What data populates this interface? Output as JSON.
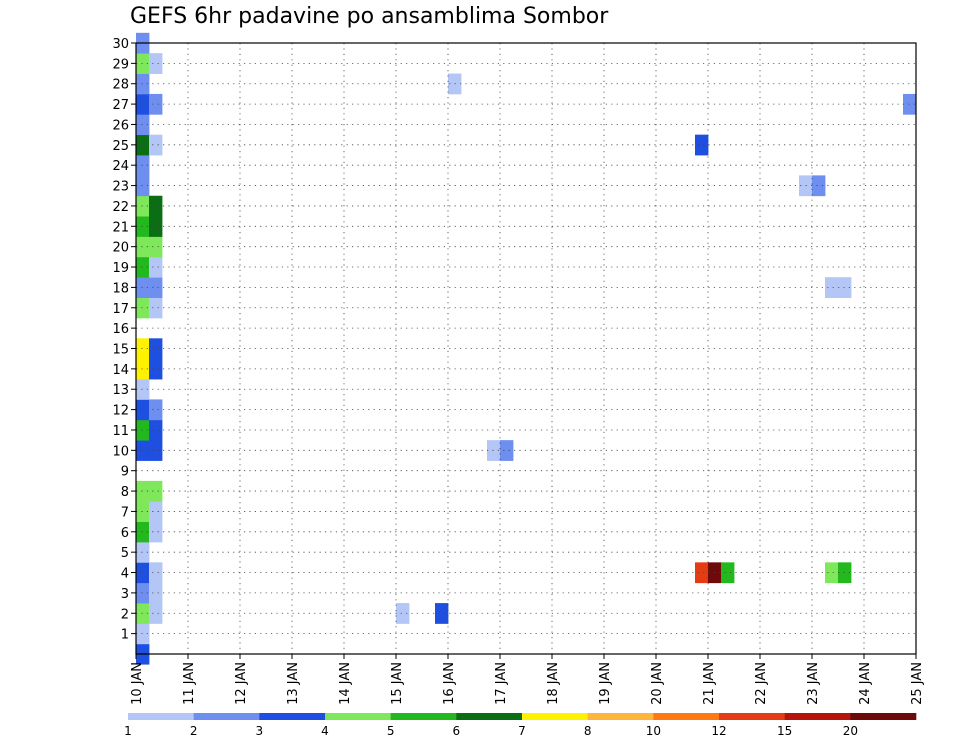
{
  "chart_data": {
    "type": "heatmap",
    "title": "GEFS 6hr padavine po ansamblima Sombor",
    "xlabel": "",
    "ylabel": "",
    "x_ticks": [
      "10 JAN",
      "11 JAN",
      "12 JAN",
      "13 JAN",
      "14 JAN",
      "15 JAN",
      "16 JAN",
      "17 JAN",
      "18 JAN",
      "19 JAN",
      "20 JAN",
      "21 JAN",
      "22 JAN",
      "23 JAN",
      "24 JAN",
      "25 JAN"
    ],
    "x_range_days": [
      10,
      25
    ],
    "y_ticks": [
      "1",
      "2",
      "3",
      "4",
      "5",
      "6",
      "7",
      "8",
      "9",
      "10",
      "11",
      "12",
      "13",
      "14",
      "15",
      "16",
      "17",
      "18",
      "19",
      "20",
      "21",
      "22",
      "23",
      "24",
      "25",
      "26",
      "27",
      "28",
      "29",
      "30"
    ],
    "y_range": [
      0,
      30
    ],
    "grid": true,
    "legend_position": "bottom",
    "colorbar": {
      "labels": [
        "1",
        "2",
        "3",
        "4",
        "5",
        "6",
        "7",
        "8",
        "10",
        "12",
        "15",
        "20"
      ],
      "colors": [
        "#b4c6f5",
        "#6e8ff0",
        "#1e4fe0",
        "#7ee85a",
        "#22b81e",
        "#0b6e14",
        "#fff200",
        "#ffb43c",
        "#ff7814",
        "#e63c14",
        "#b4140a",
        "#6e0a0a"
      ]
    },
    "cells": [
      {
        "x": 10.0,
        "y": 0,
        "c": 2
      },
      {
        "x": 10.0,
        "y": 1,
        "c": 0
      },
      {
        "x": 10.0,
        "y": 2,
        "c": 3
      },
      {
        "x": 10.25,
        "y": 2,
        "c": 0
      },
      {
        "x": 10.0,
        "y": 3,
        "c": 1
      },
      {
        "x": 10.25,
        "y": 3,
        "c": 0
      },
      {
        "x": 10.0,
        "y": 4,
        "c": 2
      },
      {
        "x": 10.25,
        "y": 4,
        "c": 0
      },
      {
        "x": 10.0,
        "y": 5,
        "c": 0
      },
      {
        "x": 10.0,
        "y": 6,
        "c": 4
      },
      {
        "x": 10.25,
        "y": 6,
        "c": 0
      },
      {
        "x": 10.0,
        "y": 7,
        "c": 3
      },
      {
        "x": 10.25,
        "y": 7,
        "c": 0
      },
      {
        "x": 10.0,
        "y": 8,
        "c": 3
      },
      {
        "x": 10.25,
        "y": 8,
        "c": 3
      },
      {
        "x": 10.0,
        "y": 10,
        "c": 2
      },
      {
        "x": 10.25,
        "y": 10,
        "c": 2
      },
      {
        "x": 10.0,
        "y": 11,
        "c": 4
      },
      {
        "x": 10.25,
        "y": 11,
        "c": 2
      },
      {
        "x": 10.0,
        "y": 12,
        "c": 2
      },
      {
        "x": 10.25,
        "y": 12,
        "c": 1
      },
      {
        "x": 10.0,
        "y": 13,
        "c": 0
      },
      {
        "x": 10.0,
        "y": 14,
        "c": 6
      },
      {
        "x": 10.25,
        "y": 14,
        "c": 2
      },
      {
        "x": 10.0,
        "y": 15,
        "c": 6
      },
      {
        "x": 10.25,
        "y": 15,
        "c": 2
      },
      {
        "x": 10.0,
        "y": 17,
        "c": 3
      },
      {
        "x": 10.25,
        "y": 17,
        "c": 0
      },
      {
        "x": 10.0,
        "y": 18,
        "c": 1
      },
      {
        "x": 10.25,
        "y": 18,
        "c": 1
      },
      {
        "x": 10.0,
        "y": 19,
        "c": 4
      },
      {
        "x": 10.25,
        "y": 19,
        "c": 0
      },
      {
        "x": 10.0,
        "y": 20,
        "c": 3
      },
      {
        "x": 10.25,
        "y": 20,
        "c": 3
      },
      {
        "x": 10.0,
        "y": 21,
        "c": 4
      },
      {
        "x": 10.25,
        "y": 21,
        "c": 5
      },
      {
        "x": 10.0,
        "y": 22,
        "c": 3
      },
      {
        "x": 10.25,
        "y": 22,
        "c": 5
      },
      {
        "x": 10.0,
        "y": 23,
        "c": 1
      },
      {
        "x": 10.0,
        "y": 24,
        "c": 1
      },
      {
        "x": 10.0,
        "y": 25,
        "c": 5
      },
      {
        "x": 10.25,
        "y": 25,
        "c": 0
      },
      {
        "x": 10.0,
        "y": 26,
        "c": 1
      },
      {
        "x": 10.0,
        "y": 27,
        "c": 2
      },
      {
        "x": 10.25,
        "y": 27,
        "c": 1
      },
      {
        "x": 10.0,
        "y": 28,
        "c": 1
      },
      {
        "x": 10.0,
        "y": 29,
        "c": 3
      },
      {
        "x": 10.25,
        "y": 29,
        "c": 0
      },
      {
        "x": 10.0,
        "y": 30,
        "c": 1
      },
      {
        "x": 15.0,
        "y": 2,
        "c": 0
      },
      {
        "x": 15.75,
        "y": 2,
        "c": 2
      },
      {
        "x": 16.0,
        "y": 28,
        "c": 0
      },
      {
        "x": 16.75,
        "y": 10,
        "c": 0
      },
      {
        "x": 17.0,
        "y": 10,
        "c": 1
      },
      {
        "x": 20.75,
        "y": 4,
        "c": 9
      },
      {
        "x": 21.0,
        "y": 4,
        "c": 11
      },
      {
        "x": 21.25,
        "y": 4,
        "c": 4
      },
      {
        "x": 20.75,
        "y": 25,
        "c": 2
      },
      {
        "x": 22.75,
        "y": 23,
        "c": 0
      },
      {
        "x": 23.0,
        "y": 23,
        "c": 1
      },
      {
        "x": 23.25,
        "y": 4,
        "c": 3
      },
      {
        "x": 23.5,
        "y": 4,
        "c": 4
      },
      {
        "x": 23.25,
        "y": 18,
        "c": 0
      },
      {
        "x": 23.5,
        "y": 18,
        "c": 0
      },
      {
        "x": 24.75,
        "y": 27,
        "c": 1
      }
    ]
  }
}
